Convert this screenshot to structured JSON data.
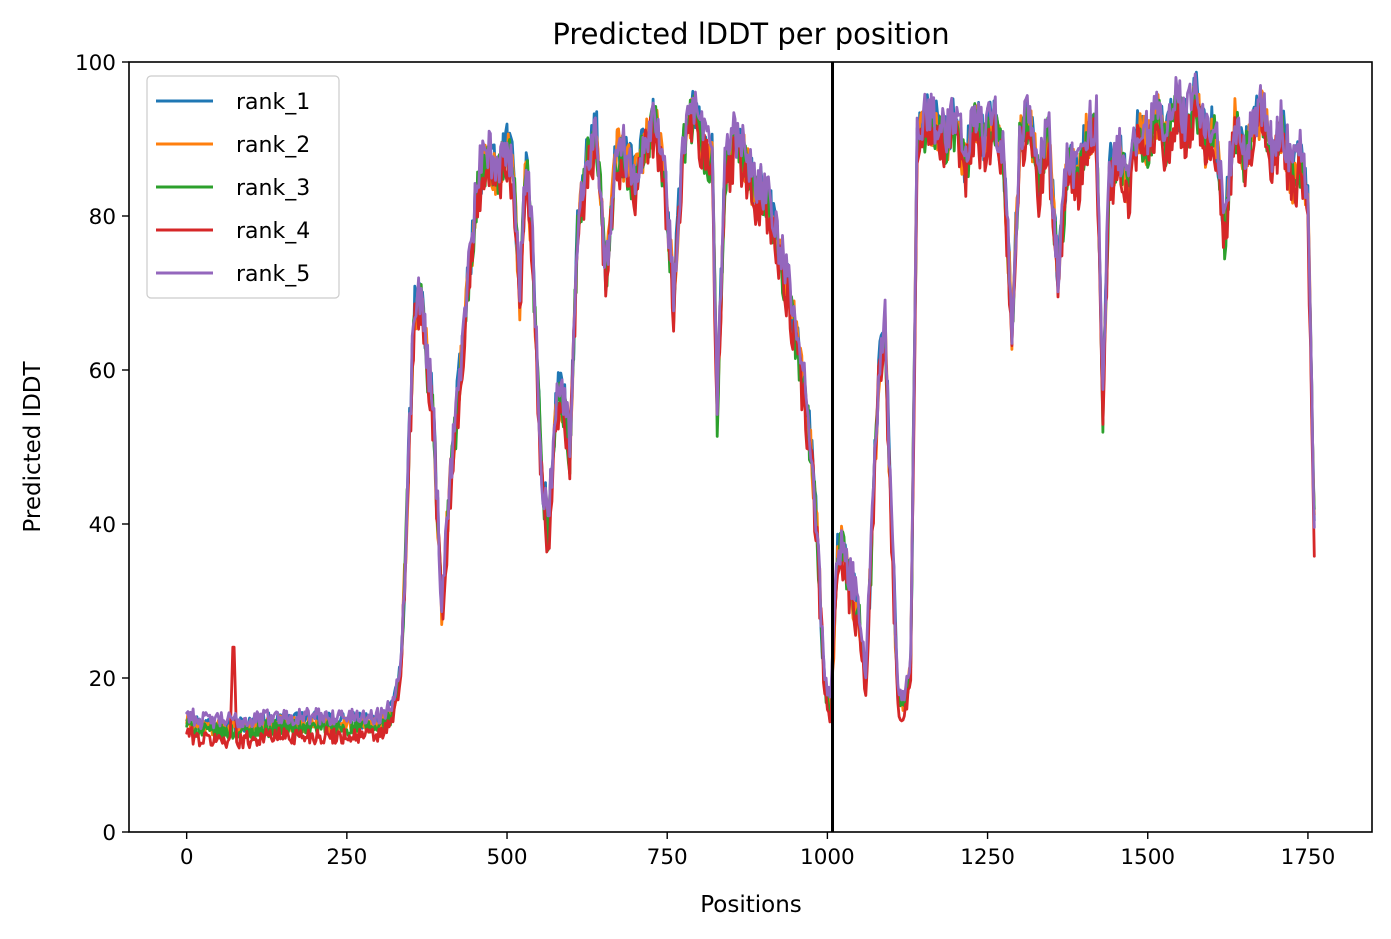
{
  "chart_data": {
    "type": "line",
    "title": "Predicted lDDT per position",
    "xlabel": "Positions",
    "ylabel": "Predicted lDDT",
    "xlim": [
      -90,
      1850
    ],
    "ylim": [
      0,
      100
    ],
    "xticks": [
      0,
      250,
      500,
      750,
      1000,
      1250,
      1500,
      1750
    ],
    "yticks": [
      0,
      20,
      40,
      60,
      80,
      100
    ],
    "grid": false,
    "legend": "upper-left",
    "vline": {
      "x": 1008,
      "color": "#000000"
    },
    "anchors": [
      [
        0,
        15
      ],
      [
        20,
        14
      ],
      [
        50,
        14
      ],
      [
        72,
        14
      ],
      [
        100,
        14
      ],
      [
        130,
        14.5
      ],
      [
        160,
        14.5
      ],
      [
        200,
        14.5
      ],
      [
        250,
        14.5
      ],
      [
        300,
        14.5
      ],
      [
        320,
        16
      ],
      [
        335,
        22
      ],
      [
        345,
        45
      ],
      [
        355,
        68
      ],
      [
        365,
        70
      ],
      [
        375,
        62
      ],
      [
        385,
        55
      ],
      [
        398,
        29
      ],
      [
        410,
        45
      ],
      [
        425,
        58
      ],
      [
        440,
        72
      ],
      [
        455,
        85
      ],
      [
        470,
        88
      ],
      [
        485,
        86
      ],
      [
        500,
        89
      ],
      [
        510,
        86
      ],
      [
        520,
        70
      ],
      [
        530,
        88
      ],
      [
        540,
        75
      ],
      [
        555,
        45
      ],
      [
        565,
        40
      ],
      [
        578,
        58
      ],
      [
        590,
        55
      ],
      [
        598,
        50
      ],
      [
        610,
        78
      ],
      [
        625,
        88
      ],
      [
        640,
        91
      ],
      [
        655,
        72
      ],
      [
        670,
        89
      ],
      [
        685,
        88
      ],
      [
        700,
        85
      ],
      [
        715,
        90
      ],
      [
        730,
        93
      ],
      [
        745,
        86
      ],
      [
        760,
        70
      ],
      [
        775,
        90
      ],
      [
        790,
        94
      ],
      [
        805,
        90
      ],
      [
        820,
        88
      ],
      [
        828,
        55
      ],
      [
        840,
        86
      ],
      [
        855,
        90
      ],
      [
        870,
        88
      ],
      [
        885,
        84
      ],
      [
        900,
        83
      ],
      [
        915,
        80
      ],
      [
        930,
        74
      ],
      [
        945,
        68
      ],
      [
        960,
        60
      ],
      [
        975,
        50
      ],
      [
        985,
        38
      ],
      [
        995,
        20
      ],
      [
        1005,
        16
      ],
      [
        1015,
        36
      ],
      [
        1025,
        38
      ],
      [
        1035,
        33
      ],
      [
        1050,
        28
      ],
      [
        1060,
        20
      ],
      [
        1070,
        40
      ],
      [
        1080,
        60
      ],
      [
        1090,
        66
      ],
      [
        1100,
        40
      ],
      [
        1110,
        18
      ],
      [
        1120,
        17
      ],
      [
        1130,
        22
      ],
      [
        1140,
        90
      ],
      [
        1155,
        93
      ],
      [
        1170,
        92
      ],
      [
        1185,
        90
      ],
      [
        1200,
        93
      ],
      [
        1215,
        87
      ],
      [
        1230,
        93
      ],
      [
        1245,
        90
      ],
      [
        1260,
        93
      ],
      [
        1275,
        88
      ],
      [
        1288,
        66
      ],
      [
        1300,
        90
      ],
      [
        1315,
        93
      ],
      [
        1330,
        85
      ],
      [
        1345,
        91
      ],
      [
        1360,
        72
      ],
      [
        1375,
        88
      ],
      [
        1390,
        85
      ],
      [
        1405,
        91
      ],
      [
        1420,
        92
      ],
      [
        1430,
        56
      ],
      [
        1440,
        86
      ],
      [
        1455,
        88
      ],
      [
        1470,
        84
      ],
      [
        1485,
        92
      ],
      [
        1500,
        90
      ],
      [
        1515,
        94
      ],
      [
        1530,
        90
      ],
      [
        1545,
        95
      ],
      [
        1560,
        92
      ],
      [
        1575,
        96
      ],
      [
        1590,
        90
      ],
      [
        1605,
        92
      ],
      [
        1620,
        78
      ],
      [
        1635,
        93
      ],
      [
        1650,
        88
      ],
      [
        1665,
        92
      ],
      [
        1680,
        94
      ],
      [
        1695,
        88
      ],
      [
        1710,
        92
      ],
      [
        1725,
        85
      ],
      [
        1740,
        88
      ],
      [
        1750,
        82
      ],
      [
        1760,
        40
      ]
    ],
    "spikes": [
      [
        73,
        27,
        4
      ]
    ],
    "series": [
      {
        "name": "rank_1",
        "color": "#1f77b4",
        "offsets": [
          [
            0,
            0
          ]
        ]
      },
      {
        "name": "rank_2",
        "color": "#ff7f0e",
        "offsets": [
          [
            0,
            -0.5
          ]
        ]
      },
      {
        "name": "rank_3",
        "color": "#2ca02c",
        "offsets": [
          [
            0,
            -1
          ]
        ]
      },
      {
        "name": "rank_4",
        "color": "#d62728",
        "offsets": [
          [
            0,
            -2
          ]
        ]
      },
      {
        "name": "rank_5",
        "color": "#9467bd",
        "offsets": [
          [
            0,
            0.5
          ]
        ]
      }
    ]
  }
}
